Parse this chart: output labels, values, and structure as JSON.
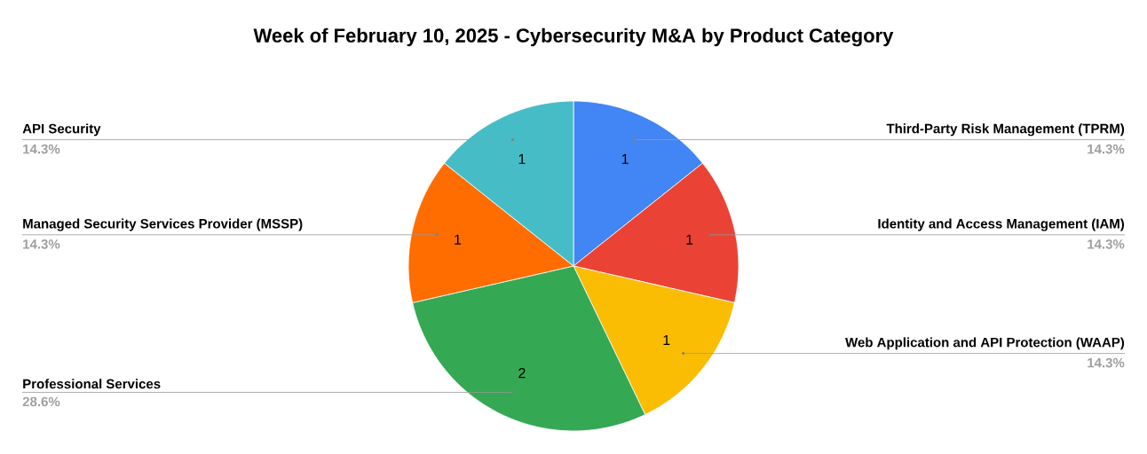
{
  "chart_data": {
    "type": "pie",
    "title": "Week of February 10, 2025 - Cybersecurity M&A by Product Category",
    "categories": [
      "Third-Party Risk Management (TPRM)",
      "Identity and Access Management (IAM)",
      "Web Application and API Protection (WAAP)",
      "Professional Services",
      "Managed Security Services Provider (MSSP)",
      "API Security"
    ],
    "values": [
      1,
      1,
      1,
      2,
      1,
      1
    ],
    "colors": [
      "#4285f4",
      "#ea4335",
      "#fbbc04",
      "#34a853",
      "#ff6d01",
      "#46bdc6"
    ],
    "value_labels": [
      "1",
      "1",
      "1",
      "2",
      "1",
      "1"
    ],
    "annotations": [
      "14.3%",
      "14.3%",
      "14.3%",
      "28.6%",
      "14.3%",
      "14.3%"
    ]
  }
}
